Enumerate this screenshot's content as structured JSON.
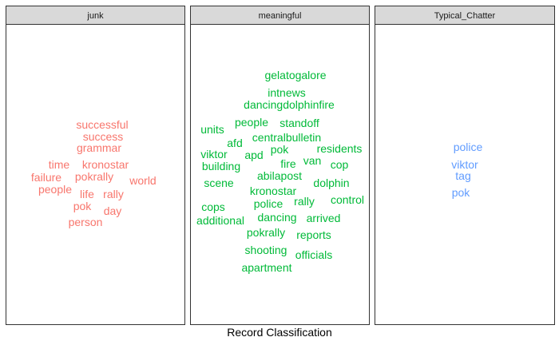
{
  "chart_data": {
    "type": "wordcloud",
    "xlabel": "Record Classification",
    "facets": [
      {
        "name": "junk",
        "color": "#F8766D",
        "words": [
          "successful",
          "success",
          "grammar",
          "time",
          "kronostar",
          "failure",
          "pokrally",
          "world",
          "people",
          "life",
          "rally",
          "pok",
          "day",
          "person"
        ]
      },
      {
        "name": "meaningful",
        "color": "#00BA38",
        "words": [
          "gelatogalore",
          "intnews",
          "dancingdolphinfire",
          "units",
          "people",
          "standoff",
          "afd",
          "centralbulletin",
          "viktor",
          "apd",
          "pok",
          "residents",
          "building",
          "fire",
          "van",
          "cop",
          "abilapost",
          "scene",
          "dolphin",
          "kronostar",
          "cops",
          "police",
          "rally",
          "control",
          "additional",
          "dancing",
          "arrived",
          "pokrally",
          "reports",
          "shooting",
          "officials",
          "apartment"
        ]
      },
      {
        "name": "Typical_Chatter",
        "color": "#619CFF",
        "words": [
          "police",
          "viktor",
          "tag",
          "pok"
        ]
      }
    ]
  }
}
